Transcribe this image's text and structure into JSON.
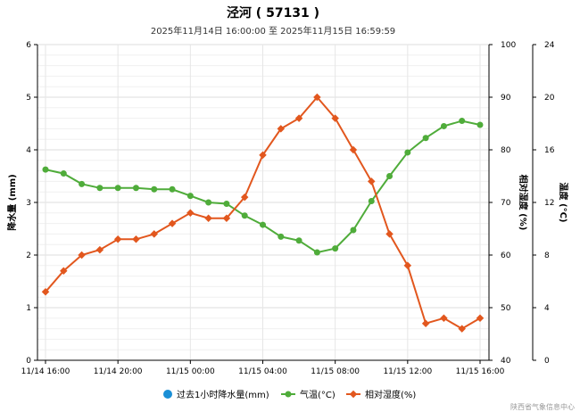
{
  "chart_data": {
    "type": "line",
    "title": "泾河 ( 57131 )",
    "subtitle": "2025年11月14日 16:00:00 至 2025年11月15日 16:59:59",
    "credit": "陕西省气象信息中心",
    "x_tick_labels": [
      "11/14 16:00",
      "11/14 20:00",
      "11/15 00:00",
      "11/15 04:00",
      "11/15 08:00",
      "11/15 12:00",
      "11/15 16:00"
    ],
    "axes": {
      "precip": {
        "label": "降水量 (mm)",
        "min": 0,
        "max": 6,
        "ticks": [
          0,
          1,
          2,
          3,
          4,
          5,
          6
        ]
      },
      "humidity": {
        "label": "相对湿度 (%)",
        "min": 40,
        "max": 100,
        "ticks": [
          40,
          50,
          60,
          70,
          80,
          90,
          100
        ]
      },
      "temperature": {
        "label": "温度 (°C)",
        "min": 0,
        "max": 24,
        "ticks": [
          0,
          4,
          8,
          12,
          16,
          20,
          24
        ]
      }
    },
    "legend": [
      "过去1小时降水量(mm)",
      "气温(°C)",
      "相对湿度(%)"
    ],
    "series": [
      {
        "name": "过去1小时降水量(mm)",
        "axis": "precip",
        "color": "#1a8fd6",
        "values": []
      },
      {
        "name": "气温(°C)",
        "axis": "temperature",
        "color": "#4fac3a",
        "values": [
          14.5,
          14.2,
          13.4,
          13.1,
          13.1,
          13.1,
          13.0,
          13.0,
          12.5,
          12.0,
          11.9,
          11.0,
          10.3,
          9.4,
          9.1,
          8.2,
          8.5,
          9.9,
          12.1,
          14.0,
          15.8,
          16.9,
          17.8,
          18.2,
          17.9
        ]
      },
      {
        "name": "相对湿度(%)",
        "axis": "humidity",
        "color": "#e2571e",
        "values": [
          53,
          57,
          60,
          61,
          63,
          63,
          64,
          66,
          68,
          67,
          67,
          71,
          79,
          84,
          86,
          90,
          86,
          80,
          74,
          64,
          58,
          47,
          48,
          46,
          48
        ]
      }
    ]
  }
}
